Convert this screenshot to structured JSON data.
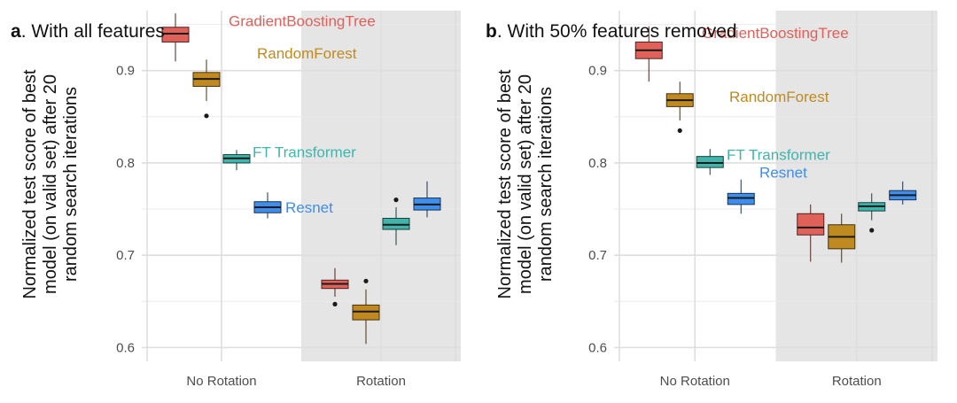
{
  "chart_data": [
    {
      "type": "box",
      "panel_letter": "a",
      "title": ". With all features",
      "ylabel": [
        "Normalized test score of best",
        "model (on valid set) after 20",
        "random search iterations"
      ],
      "xlabel": "",
      "categories": [
        "No Rotation",
        "Rotation"
      ],
      "shaded_category": "Rotation",
      "ylim": [
        0.585,
        0.965
      ],
      "yticks": [
        0.6,
        0.7,
        0.8,
        0.9
      ],
      "ytick_labels": [
        "0.6",
        "0.7",
        "0.8",
        "0.9"
      ],
      "series": [
        {
          "name": "GradientBoostingTree",
          "color": "#E0605A",
          "boxes": [
            {
              "category": "No Rotation",
              "min": 0.91,
              "q1": 0.931,
              "median": 0.94,
              "q3": 0.947,
              "max": 0.962,
              "outliers": []
            },
            {
              "category": "Rotation",
              "min": 0.655,
              "q1": 0.664,
              "median": 0.669,
              "q3": 0.673,
              "max": 0.686,
              "outliers": [
                0.647
              ]
            }
          ]
        },
        {
          "name": "RandomForest",
          "color": "#C08A20",
          "boxes": [
            {
              "category": "No Rotation",
              "min": 0.867,
              "q1": 0.883,
              "median": 0.891,
              "q3": 0.898,
              "max": 0.912,
              "outliers": [
                0.851
              ]
            },
            {
              "category": "Rotation",
              "min": 0.604,
              "q1": 0.63,
              "median": 0.639,
              "q3": 0.646,
              "max": 0.663,
              "outliers": [
                0.672
              ]
            }
          ]
        },
        {
          "name": "FT Transformer",
          "color": "#3FB5AB",
          "boxes": [
            {
              "category": "No Rotation",
              "min": 0.792,
              "q1": 0.8,
              "median": 0.805,
              "q3": 0.809,
              "max": 0.814,
              "outliers": []
            },
            {
              "category": "Rotation",
              "min": 0.711,
              "q1": 0.728,
              "median": 0.733,
              "q3": 0.74,
              "max": 0.752,
              "outliers": [
                0.76
              ]
            }
          ]
        },
        {
          "name": "Resnet",
          "color": "#3F8EEB",
          "boxes": [
            {
              "category": "No Rotation",
              "min": 0.74,
              "q1": 0.746,
              "median": 0.752,
              "q3": 0.758,
              "max": 0.768,
              "outliers": []
            },
            {
              "category": "Rotation",
              "min": 0.741,
              "q1": 0.749,
              "median": 0.755,
              "q3": 0.762,
              "max": 0.78,
              "outliers": []
            }
          ]
        }
      ],
      "annotations": [
        {
          "text": "GradientBoostingTree",
          "series": "GradientBoostingTree",
          "y": 0.954
        },
        {
          "text": "RandomForest",
          "series": "RandomForest",
          "y": 0.919
        },
        {
          "text": "FT Transformer",
          "series": "FT Transformer",
          "y": 0.812
        },
        {
          "text": "Resnet",
          "series": "Resnet",
          "y": 0.752
        }
      ],
      "grid": true
    },
    {
      "type": "box",
      "panel_letter": "b",
      "title": ". With 50% features removed",
      "ylabel": [
        "Normalized test score of best",
        "model (on valid set) after 20",
        "random search iterations"
      ],
      "xlabel": "",
      "categories": [
        "No Rotation",
        "Rotation"
      ],
      "shaded_category": "Rotation",
      "ylim": [
        0.585,
        0.965
      ],
      "yticks": [
        0.6,
        0.7,
        0.8,
        0.9
      ],
      "ytick_labels": [
        "0.6",
        "0.7",
        "0.8",
        "0.9"
      ],
      "series": [
        {
          "name": "GradientBoostingTree",
          "color": "#E0605A",
          "boxes": [
            {
              "category": "No Rotation",
              "min": 0.888,
              "q1": 0.913,
              "median": 0.922,
              "q3": 0.931,
              "max": 0.948,
              "outliers": []
            },
            {
              "category": "Rotation",
              "min": 0.693,
              "q1": 0.722,
              "median": 0.73,
              "q3": 0.745,
              "max": 0.755,
              "outliers": []
            }
          ]
        },
        {
          "name": "RandomForest",
          "color": "#C08A20",
          "boxes": [
            {
              "category": "No Rotation",
              "min": 0.846,
              "q1": 0.861,
              "median": 0.868,
              "q3": 0.875,
              "max": 0.888,
              "outliers": [
                0.835
              ]
            },
            {
              "category": "Rotation",
              "min": 0.692,
              "q1": 0.707,
              "median": 0.72,
              "q3": 0.733,
              "max": 0.745,
              "outliers": []
            }
          ]
        },
        {
          "name": "FT Transformer",
          "color": "#3FB5AB",
          "boxes": [
            {
              "category": "No Rotation",
              "min": 0.787,
              "q1": 0.795,
              "median": 0.8,
              "q3": 0.807,
              "max": 0.815,
              "outliers": []
            },
            {
              "category": "Rotation",
              "min": 0.738,
              "q1": 0.748,
              "median": 0.753,
              "q3": 0.757,
              "max": 0.767,
              "outliers": [
                0.727
              ]
            }
          ]
        },
        {
          "name": "Resnet",
          "color": "#3F8EEB",
          "boxes": [
            {
              "category": "No Rotation",
              "min": 0.745,
              "q1": 0.755,
              "median": 0.762,
              "q3": 0.767,
              "max": 0.782,
              "outliers": []
            },
            {
              "category": "Rotation",
              "min": 0.755,
              "q1": 0.76,
              "median": 0.765,
              "q3": 0.77,
              "max": 0.78,
              "outliers": []
            }
          ]
        }
      ],
      "annotations": [
        {
          "text": "GradientBoostingTree",
          "series": "GradientBoostingTree",
          "y": 0.941
        },
        {
          "text": "RandomForest",
          "series": "RandomForest",
          "y": 0.872
        },
        {
          "text": "FT Transformer",
          "series": "FT Transformer",
          "y": 0.809
        },
        {
          "text": "Resnet",
          "series": "Resnet",
          "y": 0.79
        }
      ],
      "grid": true
    }
  ]
}
